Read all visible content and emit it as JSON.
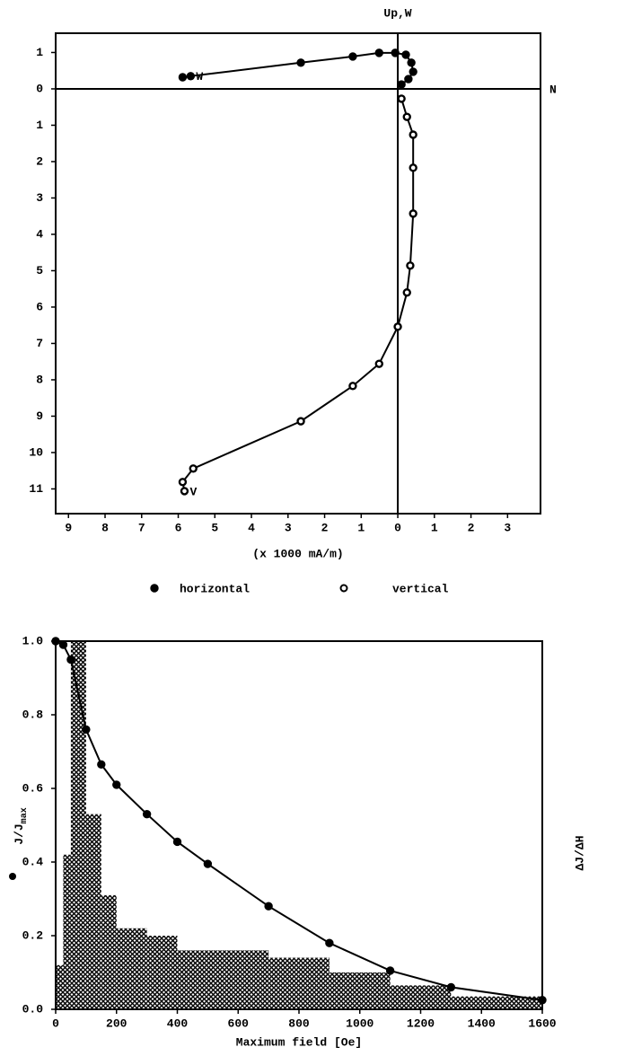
{
  "chart_data": [
    {
      "type": "line",
      "annotation_top": "Up,W",
      "annotation_right": "N",
      "xlabel": "(x 1000 mA/m)",
      "xlim": [
        -9.35,
        3.9
      ],
      "xticks": [
        {
          "value": -9,
          "label": "9"
        },
        {
          "value": -8,
          "label": "8"
        },
        {
          "value": -7,
          "label": "7"
        },
        {
          "value": -6,
          "label": "6"
        },
        {
          "value": -5,
          "label": "5"
        },
        {
          "value": -4,
          "label": "4"
        },
        {
          "value": -3,
          "label": "3"
        },
        {
          "value": -2,
          "label": "2"
        },
        {
          "value": -1,
          "label": "1"
        },
        0,
        1,
        2,
        3
      ],
      "ylim": [
        -11.68,
        1.53
      ],
      "yticks": [
        1,
        0,
        {
          "value": -1,
          "label": "1"
        },
        {
          "value": -2,
          "label": "2"
        },
        {
          "value": -3,
          "label": "3"
        },
        {
          "value": -4,
          "label": "4"
        },
        {
          "value": -5,
          "label": "5"
        },
        {
          "value": -6,
          "label": "6"
        },
        {
          "value": -7,
          "label": "7"
        },
        {
          "value": -8,
          "label": "8"
        },
        {
          "value": -9,
          "label": "9"
        },
        {
          "value": -10,
          "label": "10"
        },
        {
          "value": -11,
          "label": "11"
        }
      ],
      "legend": true,
      "series": [
        {
          "name": "horizontal",
          "color": "#000000",
          "marker": "filled",
          "point_label": "W",
          "x": [
            -5.88,
            -5.66,
            -2.65,
            -1.23,
            -0.51,
            -0.07,
            0.22,
            0.37,
            0.42,
            0.29,
            0.1
          ],
          "values": [
            0.32,
            0.35,
            0.72,
            0.89,
            0.99,
            0.99,
            0.94,
            0.72,
            0.47,
            0.27,
            0.12
          ]
        },
        {
          "name": "vertical",
          "color": "#000000",
          "marker": "open",
          "point_label": "V",
          "x": [
            0.1,
            0.25,
            0.42,
            0.42,
            0.42,
            0.34,
            0.25,
            0,
            -0.51,
            -1.23,
            -2.65,
            -5.59,
            -5.88,
            -5.83
          ],
          "values": [
            -0.27,
            -0.77,
            -1.26,
            -2.17,
            -3.43,
            -4.86,
            -5.6,
            -6.54,
            -7.56,
            -8.17,
            -9.14,
            -10.44,
            -10.81,
            -11.06
          ]
        }
      ]
    },
    {
      "type": "line",
      "xlabel": "Maximum field [Oe]",
      "ylabel": "J/J",
      "ylabel_sub": "max",
      "y2label": "ΔJ/ΔH",
      "xlim": [
        0,
        1600
      ],
      "xticks": [
        0,
        200,
        400,
        600,
        800,
        1000,
        1200,
        1400,
        1600
      ],
      "ylim": [
        0,
        1.0
      ],
      "yticks": [
        {
          "value": 0,
          "label": "0.0"
        },
        0.2,
        0.4,
        0.6,
        0.8,
        {
          "value": 1.0,
          "label": "1.0"
        }
      ],
      "legend": false,
      "histogram": {
        "color": "#000000",
        "bins": [
          0,
          25,
          50,
          100,
          150,
          200,
          300,
          400,
          700,
          900,
          1100,
          1300,
          1600
        ],
        "values": [
          0.12,
          0.42,
          1.0,
          0.53,
          0.31,
          0.22,
          0.2,
          0.16,
          0.14,
          0.1,
          0.065,
          0.035
        ]
      },
      "series": [
        {
          "color": "#000000",
          "marker": "filled",
          "x": [
            0,
            25,
            50,
            100,
            150,
            200,
            300,
            400,
            500,
            700,
            900,
            1100,
            1300,
            1600
          ],
          "values": [
            1.0,
            0.99,
            0.95,
            0.76,
            0.665,
            0.61,
            0.53,
            0.455,
            0.395,
            0.28,
            0.18,
            0.105,
            0.06,
            0.025
          ]
        }
      ]
    }
  ]
}
